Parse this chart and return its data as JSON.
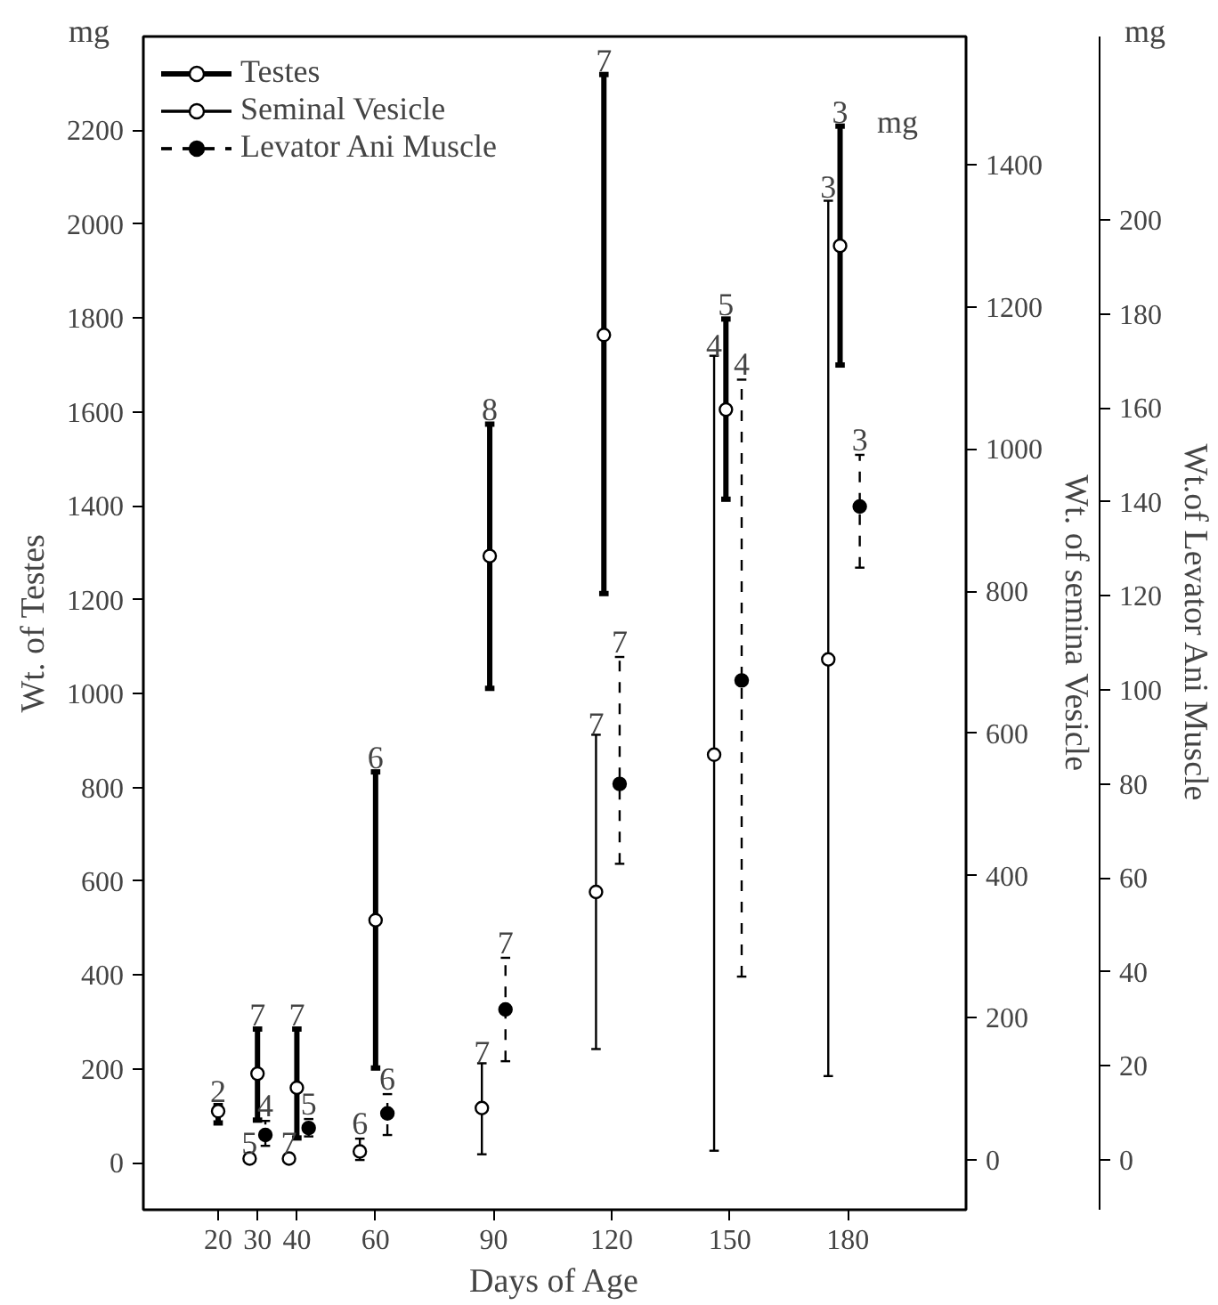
{
  "chart_data": {
    "type": "scatter",
    "xlabel": "Days of Age",
    "ylabel": "Wt. of Testes",
    "y2label": "Wt. of semina Vesicle",
    "y3label": "Wt.of Levator Ani Muscle",
    "xlim": [
      1,
      210
    ],
    "xticks": [
      20,
      30,
      40,
      60,
      90,
      120,
      150,
      180
    ],
    "ylim": [
      -100,
      2400
    ],
    "yticks": [
      0,
      200,
      400,
      600,
      800,
      1000,
      1200,
      1400,
      1600,
      1800,
      2000,
      2200
    ],
    "y2lim": [
      -70,
      1580
    ],
    "y2ticks": [
      0,
      200,
      400,
      600,
      800,
      1000,
      1200,
      1400
    ],
    "y3lim": [
      -10.6,
      239
    ],
    "y3ticks": [
      0,
      20,
      40,
      60,
      80,
      100,
      120,
      140,
      160,
      180,
      200
    ],
    "annotations": [
      "mg",
      "mg",
      "mg",
      {
        "text": "2",
        "x": 20,
        "y": 122
      },
      {
        "text": "7",
        "x": 30,
        "y": 285
      },
      {
        "text": "7",
        "x": 40,
        "y": 285
      },
      {
        "text": "6",
        "x": 60,
        "y": 833
      },
      {
        "text": "8",
        "x": 89,
        "y": 1574
      },
      {
        "text": "7",
        "x": 118,
        "y": 2319
      },
      {
        "text": "5",
        "x": 149,
        "y": 1798
      },
      {
        "text": "3",
        "x": 178,
        "y": 2209
      },
      {
        "text": "5",
        "x": 28,
        "y": 11
      },
      {
        "text": "7",
        "x": 38,
        "y": 11
      },
      {
        "text": "6",
        "x": 56,
        "y": 53
      },
      {
        "text": "7",
        "x": 87,
        "y": 206
      },
      {
        "text": "7",
        "x": 116,
        "y": 905
      },
      {
        "text": "4",
        "x": 146,
        "y": 1711
      },
      {
        "text": "3",
        "x": 175,
        "y": 2049
      },
      {
        "text": "4",
        "x": 32,
        "y": 91
      },
      {
        "text": "5",
        "x": 43,
        "y": 95
      },
      {
        "text": "6",
        "x": 63,
        "y": 148
      },
      {
        "text": "7",
        "x": 93,
        "y": 439
      },
      {
        "text": "7",
        "x": 122,
        "y": 1080
      },
      {
        "text": "4",
        "x": 153,
        "y": 1672
      },
      {
        "text": "3",
        "x": 183,
        "y": 1510
      }
    ],
    "legend": "top left",
    "grid": false,
    "marker": "circle",
    "series": [
      {
        "name": "Testes",
        "color": "#000000",
        "line_style": "solid",
        "x": [
          20,
          30,
          40,
          60,
          89,
          118,
          149,
          178
        ],
        "values": [
          110,
          190,
          160,
          517,
          1293,
          1764,
          1605,
          1954
        ],
        "errors": [
          [
            85,
            122
          ],
          [
            91,
            285
          ],
          [
            53,
            285
          ],
          [
            202,
            833
          ],
          [
            1011,
            1574
          ],
          [
            1213,
            2319
          ],
          [
            1414,
            1798
          ],
          [
            1700,
            2209
          ]
        ]
      },
      {
        "name": "Seminal Vesicle",
        "color": "#000000",
        "line_style": "solid",
        "axis": "y2",
        "x": [
          28,
          38,
          56,
          87,
          116,
          146,
          175
        ],
        "values": [
          2,
          2,
          12,
          73,
          377,
          570,
          704
        ],
        "errors": [
          null,
          null,
          [
            0,
            30
          ],
          [
            8,
            136
          ],
          [
            156,
            598
          ],
          [
            13,
            1131
          ],
          [
            118,
            1349
          ]
        ]
      },
      {
        "name": "Levator Ani Muscle",
        "color": "#000000",
        "line_style": "dashed",
        "axis": "y3",
        "x": [
          32,
          43,
          63,
          93,
          122,
          153,
          183
        ],
        "values": [
          5.3,
          6.8,
          9.9,
          32,
          80,
          102,
          139
        ],
        "errors": [
          [
            3,
            8.3
          ],
          [
            5,
            8.7
          ],
          [
            5.3,
            14
          ],
          [
            21,
            43
          ],
          [
            63,
            107
          ],
          [
            39,
            166
          ],
          [
            126,
            150
          ]
        ]
      }
    ]
  }
}
